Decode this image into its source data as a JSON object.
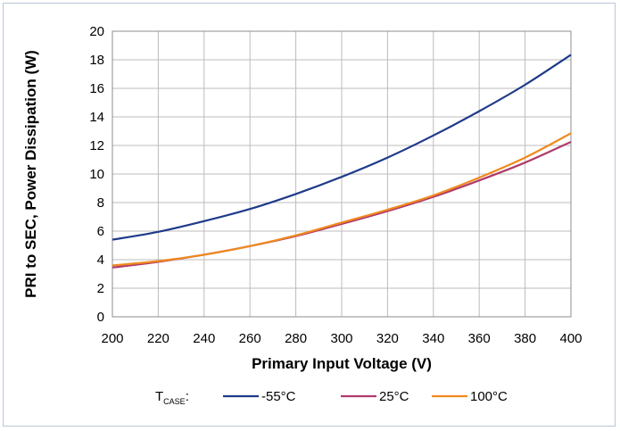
{
  "chart_data": {
    "type": "line",
    "xlabel": "Primary Input Voltage (V)",
    "ylabel": "PRI to SEC, Power Dissipation (W)",
    "xlim": [
      200,
      400
    ],
    "ylim": [
      0,
      20
    ],
    "x_ticks": [
      "200",
      "220",
      "240",
      "260",
      "280",
      "300",
      "320",
      "340",
      "360",
      "380",
      "400"
    ],
    "y_ticks": [
      "0",
      "2",
      "4",
      "6",
      "8",
      "10",
      "12",
      "14",
      "16",
      "18",
      "20"
    ],
    "grid": true,
    "legend": {
      "position": "bottom",
      "prefix_main": "T",
      "prefix_sub": "CASE",
      "prefix_suffix": ":"
    },
    "series": [
      {
        "name": "-55°C",
        "color": "#1f3a8a",
        "x": [
          200,
          220,
          240,
          260,
          280,
          300,
          320,
          340,
          360,
          380,
          400
        ],
        "y": [
          5.4,
          5.95,
          6.7,
          7.55,
          8.6,
          9.8,
          11.15,
          12.7,
          14.4,
          16.25,
          18.35
        ]
      },
      {
        "name": "25°C",
        "color": "#b03a6b",
        "x": [
          200,
          220,
          240,
          260,
          280,
          300,
          320,
          340,
          360,
          380,
          400
        ],
        "y": [
          3.45,
          3.85,
          4.35,
          4.95,
          5.65,
          6.5,
          7.4,
          8.4,
          9.55,
          10.8,
          12.25
        ]
      },
      {
        "name": "100°C",
        "color": "#f08a1e",
        "x": [
          200,
          220,
          240,
          260,
          280,
          300,
          320,
          340,
          360,
          380,
          400
        ],
        "y": [
          3.6,
          3.9,
          4.35,
          4.95,
          5.7,
          6.6,
          7.5,
          8.5,
          9.75,
          11.15,
          12.85
        ]
      }
    ]
  }
}
